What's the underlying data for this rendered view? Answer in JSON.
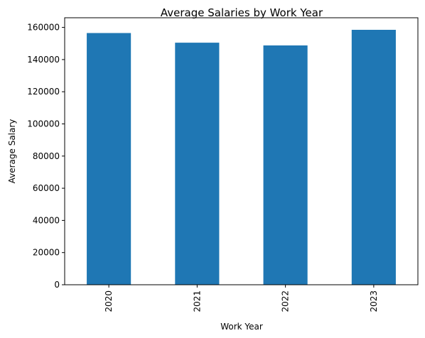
{
  "chart_data": {
    "type": "bar",
    "title": "Average Salaries by Work Year",
    "xlabel": "Work Year",
    "ylabel": "Average Salary",
    "categories": [
      "2020",
      "2021",
      "2022",
      "2023"
    ],
    "values": [
      156500,
      150500,
      148800,
      158500
    ],
    "ylim": [
      0,
      166000
    ],
    "yticks": [
      0,
      20000,
      40000,
      60000,
      80000,
      100000,
      120000,
      140000,
      160000
    ],
    "ytick_labels": [
      "0",
      "20000",
      "40000",
      "60000",
      "80000",
      "100000",
      "120000",
      "140000",
      "160000"
    ],
    "bar_color": "#1f77b4",
    "grid": false,
    "legend": "none"
  }
}
